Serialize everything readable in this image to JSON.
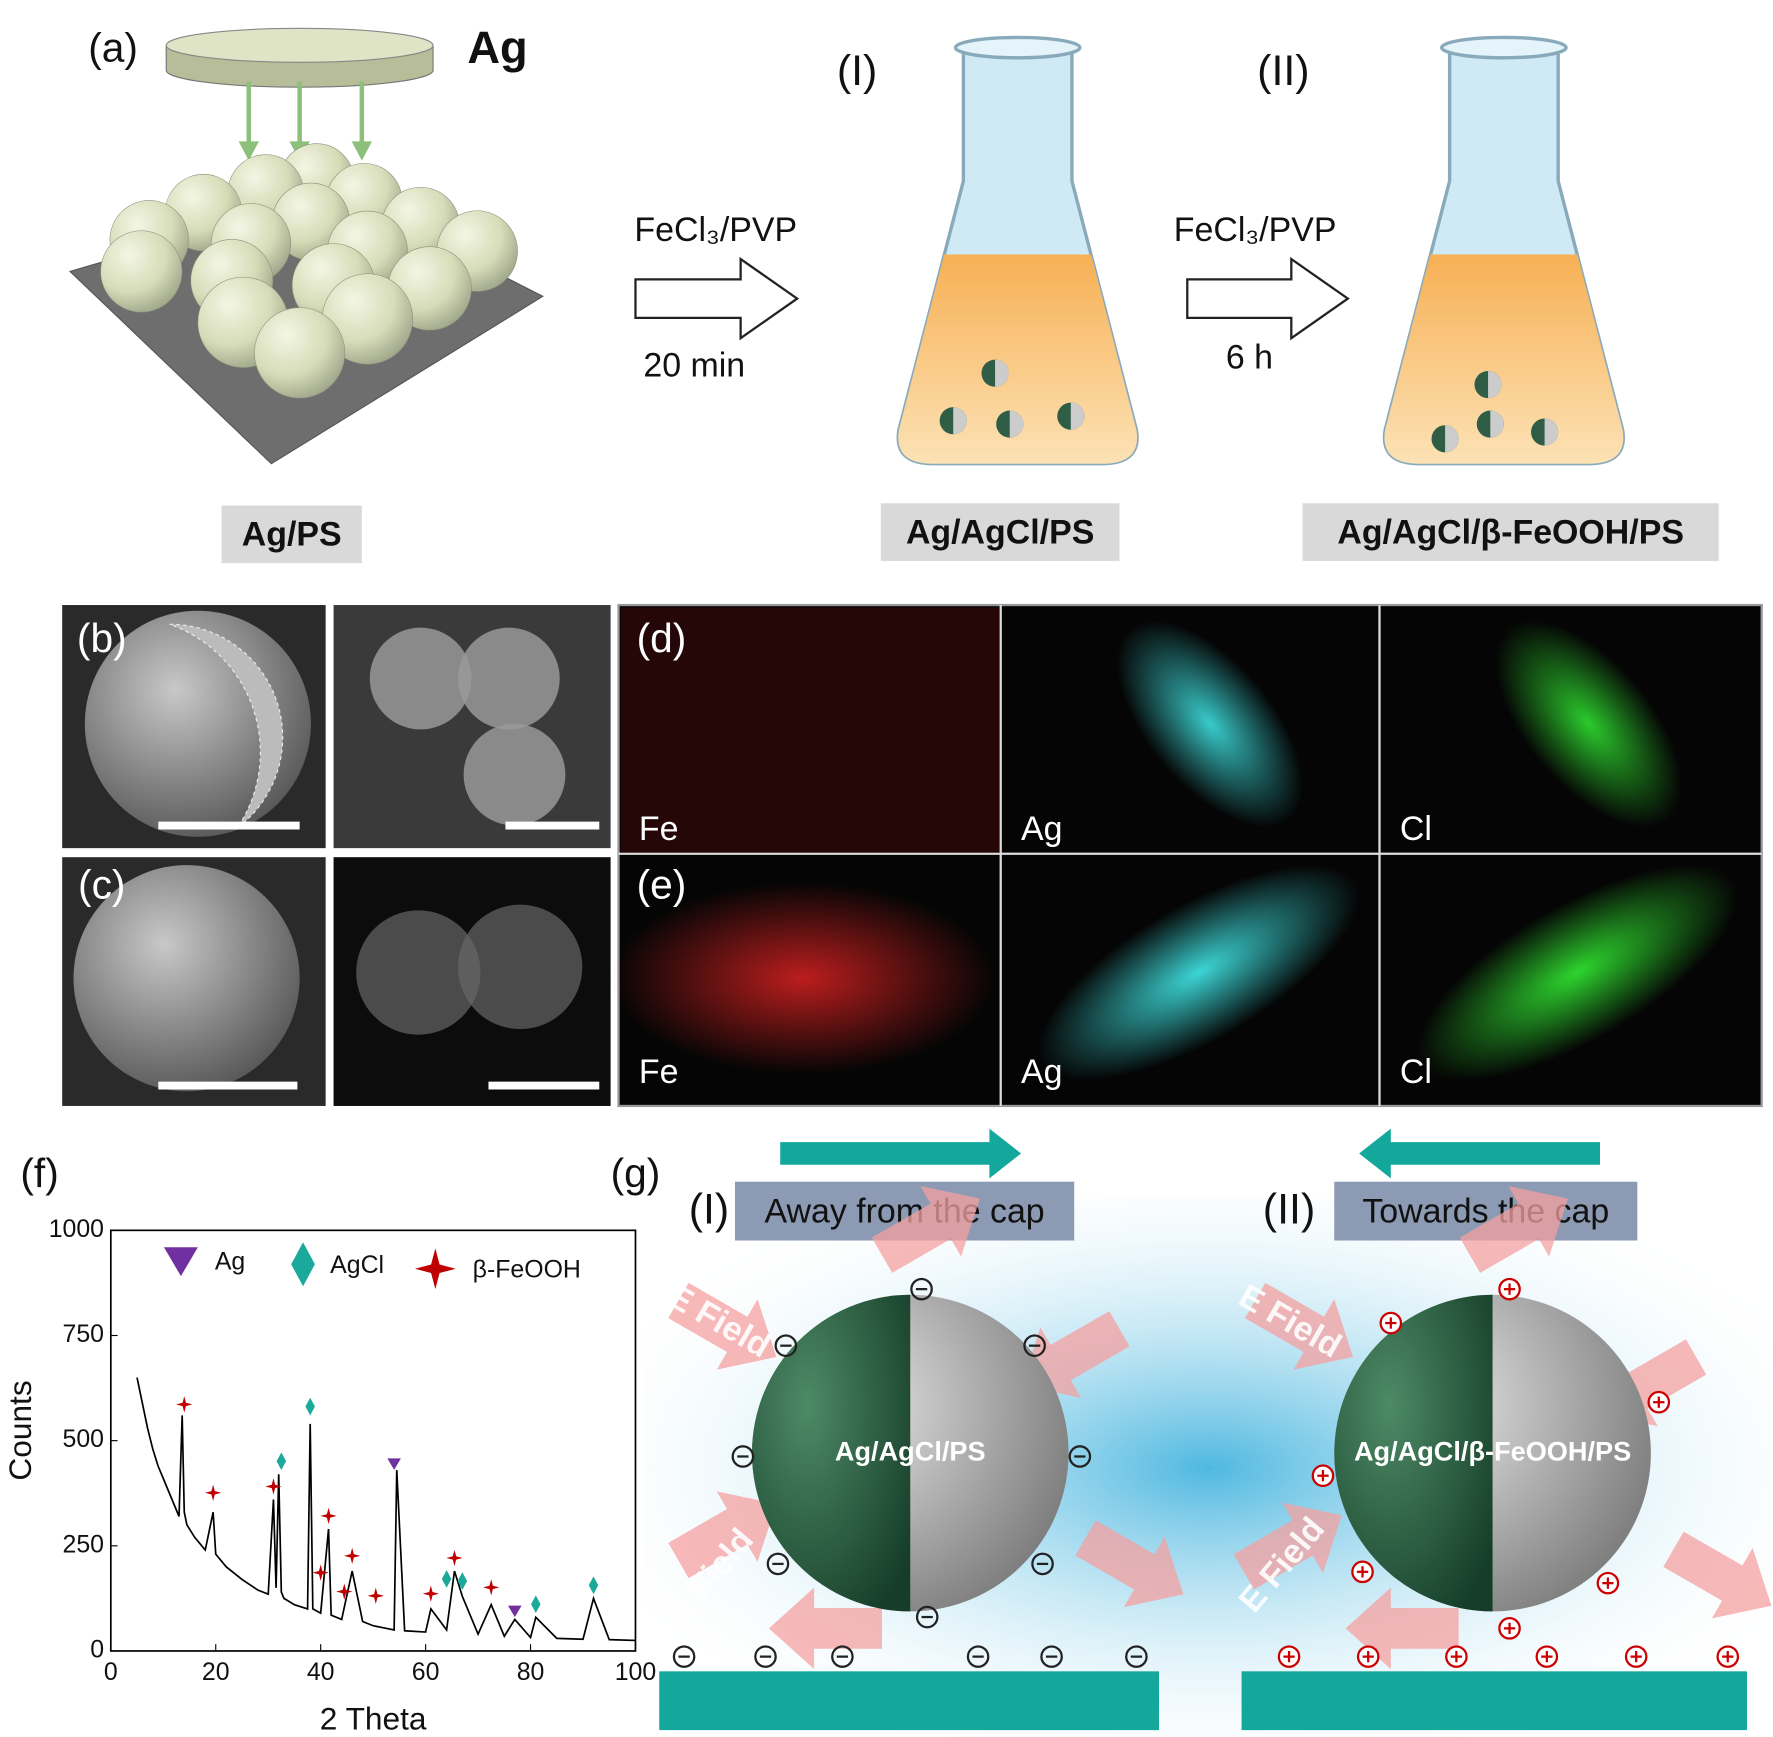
{
  "panel_a": {
    "label": "(a)",
    "target": "Ag",
    "step1": {
      "stage": "(I)",
      "reagent": "FeCl₃/PVP",
      "time": "20 min"
    },
    "step2": {
      "stage": "(II)",
      "reagent": "FeCl₃/PVP",
      "time": "6 h"
    },
    "samples": [
      "Ag/PS",
      "Ag/AgCl/PS",
      "Ag/AgCl/β-FeOOH/PS"
    ]
  },
  "panels_be": {
    "labels": [
      "(b)",
      "(c)",
      "(d)",
      "(e)"
    ],
    "elements": [
      "Fe",
      "Ag",
      "Cl"
    ]
  },
  "panel_f": {
    "label": "(f)"
  },
  "chart_data": {
    "type": "line",
    "xlabel": "2 Theta",
    "ylabel": "Counts",
    "xlim": [
      0,
      100
    ],
    "ylim": [
      0,
      1000
    ],
    "xticks": [
      0,
      20,
      40,
      60,
      80,
      100
    ],
    "yticks": [
      0,
      250,
      500,
      750,
      1000
    ],
    "series": [
      {
        "color": "#000000",
        "x": [
          5,
          6,
          7,
          8,
          9,
          10,
          11,
          12,
          13,
          13.6,
          14,
          14.5,
          16,
          18,
          19.5,
          20,
          22,
          25,
          28,
          30,
          31,
          31.5,
          32,
          32.5,
          33,
          35,
          37.5,
          38,
          38.5,
          40,
          41.5,
          42,
          44,
          46,
          48,
          50,
          52,
          54,
          54.5,
          56,
          60,
          61,
          64,
          65.5,
          67,
          70,
          72.5,
          75,
          77,
          80,
          81,
          85,
          90,
          92,
          95,
          100
        ],
        "values": [
          650,
          590,
          530,
          480,
          440,
          410,
          380,
          350,
          320,
          560,
          330,
          300,
          270,
          240,
          330,
          230,
          200,
          170,
          145,
          135,
          360,
          150,
          420,
          140,
          125,
          110,
          100,
          540,
          100,
          90,
          290,
          85,
          75,
          190,
          70,
          60,
          55,
          50,
          430,
          48,
          45,
          100,
          50,
          190,
          130,
          40,
          110,
          35,
          75,
          32,
          80,
          30,
          28,
          125,
          27,
          25
        ]
      },
      {
        "name": "Ag",
        "color": "#7030a0",
        "marker": "triangle",
        "x": [
          54,
          77
        ],
        "values": [
          445,
          95
        ]
      },
      {
        "name": "AgCl",
        "color": "#1aa99a",
        "marker": "diamond",
        "x": [
          32.5,
          38,
          64,
          67,
          81,
          92
        ],
        "values": [
          435,
          565,
          155,
          150,
          95,
          140
        ]
      },
      {
        "name": "β-FeOOH",
        "color": "#c00000",
        "marker": "star",
        "x": [
          14,
          19.5,
          31,
          40,
          41.5,
          46,
          44.5,
          50.5,
          61,
          65.5,
          72.5
        ],
        "values": [
          570,
          360,
          375,
          170,
          305,
          210,
          125,
          115,
          120,
          205,
          135
        ]
      }
    ]
  },
  "panel_g": {
    "label": "(g)",
    "left": {
      "stage": "(I)",
      "direction": "Away from the cap",
      "sample": "Ag/AgCl/PS"
    },
    "right": {
      "stage": "(II)",
      "direction": "Towards the cap",
      "sample": "Ag/AgCl/β-FeOOH/PS"
    },
    "field": "E Field"
  }
}
